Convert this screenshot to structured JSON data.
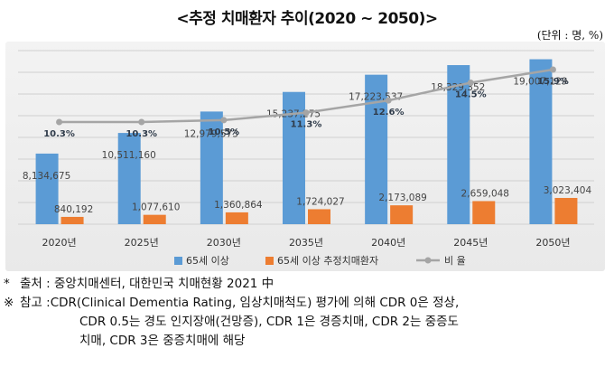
{
  "title": "<추정 치매환자 추이(2020 ~ 2050)>",
  "unit": "(단위 : 명, %)",
  "chart_data": {
    "type": "bar",
    "categories": [
      "2020년",
      "2025년",
      "2030년",
      "2035년",
      "2040년",
      "2045년",
      "2050년"
    ],
    "series": [
      {
        "name": "65세 이상",
        "type": "bar",
        "color": "#5b9bd5",
        "values": [
          8134675,
          10511160,
          12979573,
          15237275,
          17223537,
          18329352,
          19007129
        ],
        "labels": [
          "8,134,675",
          "10,511,160",
          "12,979,573",
          "15,237,275",
          "17,223,537",
          "18,329,352",
          "19,007,129"
        ]
      },
      {
        "name": "65세 이상 추정치매환자",
        "type": "bar",
        "color": "#ed7d31",
        "values": [
          840192,
          1077610,
          1360864,
          1724027,
          2173089,
          2659048,
          3023404
        ],
        "labels": [
          "840,192",
          "1,077,610",
          "1,360,864",
          "1,724,027",
          "2,173,089",
          "2,659,048",
          "3,023,404"
        ]
      },
      {
        "name": "비 율",
        "type": "line",
        "color": "#a5a5a5",
        "values": [
          10.3,
          10.3,
          10.5,
          11.3,
          12.6,
          14.5,
          15.9
        ],
        "labels": [
          "10.3%",
          "10.3%",
          "10.5%",
          "11.3%",
          "12.6%",
          "14.5%",
          "15.9%"
        ]
      }
    ],
    "ylim": [
      0,
      20000000
    ],
    "grid": true,
    "legend": "bottom"
  },
  "notes": {
    "source_mark": "*",
    "source_text": "출처 : 중앙치매센터, 대한민국 치매현황 2021 中",
    "ref_mark": "※",
    "ref_label": "참고 : ",
    "ref_line1": "CDR(Clinical Dementia Rating, 임상치매척도) 평가에 의해 CDR 0은 정상,",
    "ref_line2": "CDR 0.5는 경도 인지장애(건망증), CDR 1은 경증치매, CDR 2는 중증도",
    "ref_line3": "치매, CDR 3은 중증치매에 해당"
  }
}
